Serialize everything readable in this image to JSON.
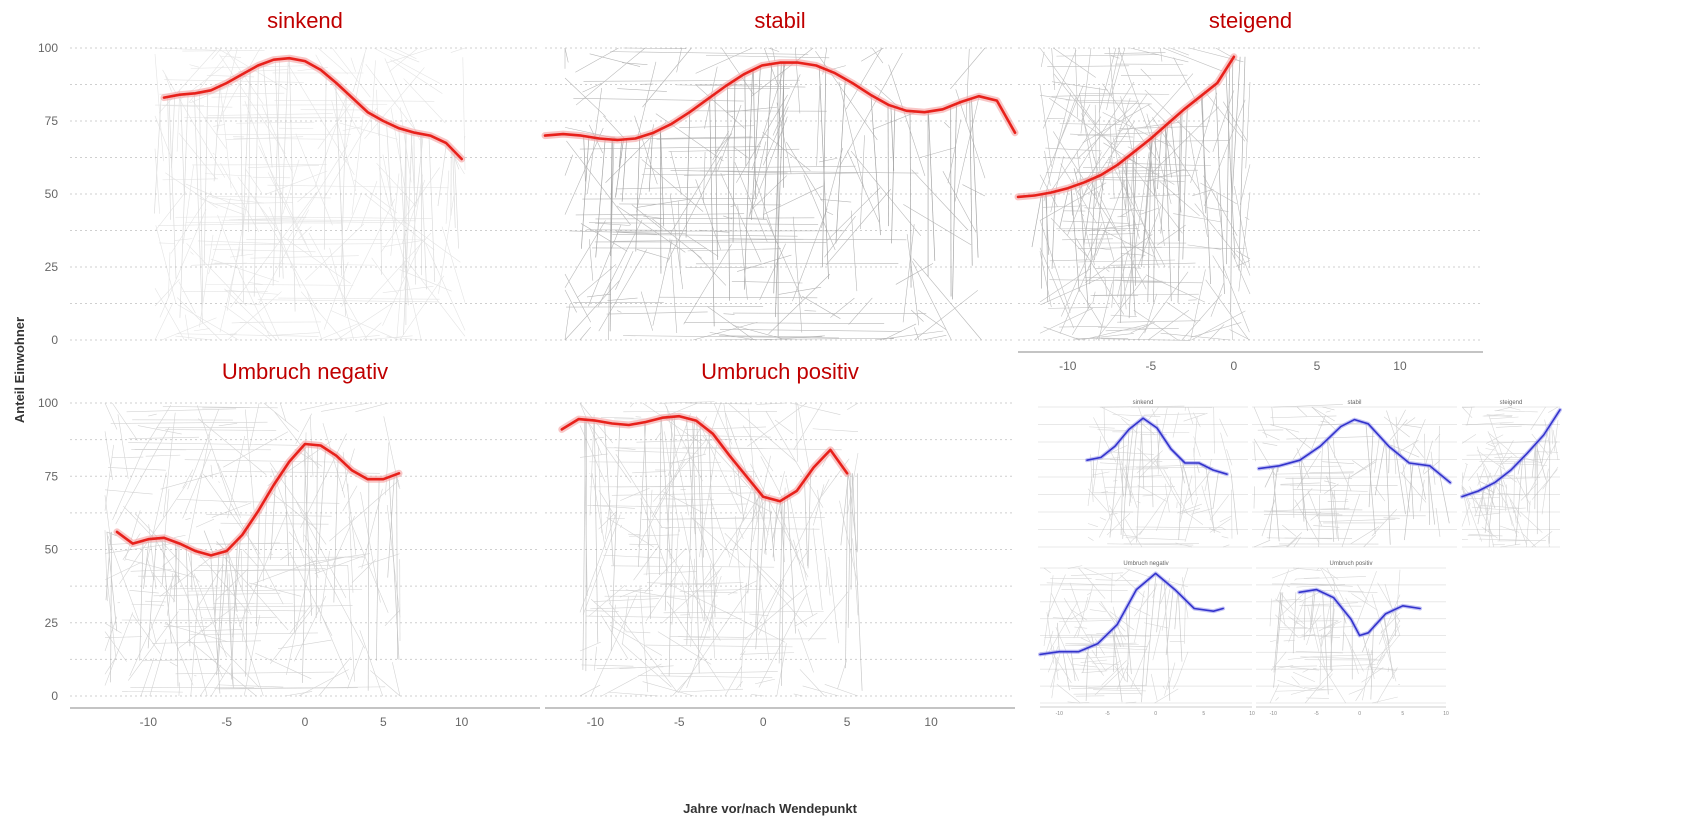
{
  "ylabel": "Anteil Einwohner",
  "xlabel": "Jahre vor/nach Wendepunkt",
  "colors": {
    "trend": "#e8211b",
    "trend_band": "#f4a0a0",
    "inset_trend": "#3333cc",
    "background_lines": "#b0b0b0"
  },
  "chart_data": [
    {
      "type": "line",
      "title": "sinkend",
      "xlim": [
        -15,
        15
      ],
      "ylim": [
        0,
        100
      ],
      "yticks": [
        0,
        25,
        50,
        75,
        100
      ],
      "series": [
        {
          "x": [
            -9,
            -8,
            -7,
            -6,
            -5,
            -4,
            -3,
            -2,
            -1,
            0,
            1,
            2,
            3,
            4,
            5,
            6,
            7,
            8,
            9,
            10
          ],
          "y": [
            83,
            84,
            84.5,
            85.5,
            88,
            91,
            94,
            96,
            96.5,
            95.5,
            92.5,
            88,
            83,
            78,
            75,
            72.5,
            71,
            70,
            67.5,
            62
          ]
        }
      ]
    },
    {
      "type": "line",
      "title": "stabil",
      "xlim": [
        -13,
        13
      ],
      "ylim": [
        0,
        100
      ],
      "series": [
        {
          "x": [
            -13,
            -12,
            -11,
            -10,
            -9,
            -8,
            -7,
            -6,
            -5,
            -4,
            -3,
            -2,
            -1,
            0,
            1,
            2,
            3,
            4,
            5,
            6,
            7,
            8,
            9,
            10,
            11,
            12,
            13
          ],
          "y": [
            70,
            70.5,
            70,
            69,
            68.5,
            69,
            71,
            74,
            78,
            82.5,
            87,
            91,
            94,
            95,
            95,
            94,
            91.5,
            88,
            84,
            80.5,
            78.5,
            78,
            79,
            81.5,
            83.5,
            82,
            71
          ]
        }
      ]
    },
    {
      "type": "line",
      "title": "steigend",
      "xlim": [
        -13,
        15
      ],
      "ylim": [
        0,
        100
      ],
      "xticks": [
        -10,
        -5,
        0,
        5,
        10
      ],
      "series": [
        {
          "x": [
            -13,
            -12,
            -11,
            -10,
            -9,
            -8,
            -7,
            -6,
            -5,
            -4,
            -3,
            -2,
            -1,
            0
          ],
          "y": [
            49,
            49.5,
            50.5,
            52,
            54,
            56.5,
            60,
            64.5,
            69,
            74,
            79,
            83.5,
            88,
            97
          ]
        }
      ]
    },
    {
      "type": "line",
      "title": "Umbruch negativ",
      "xlim": [
        -15,
        15
      ],
      "ylim": [
        0,
        100
      ],
      "yticks": [
        0,
        25,
        50,
        75,
        100
      ],
      "xticks": [
        -10,
        -5,
        0,
        5,
        10
      ],
      "series": [
        {
          "x": [
            -12,
            -11,
            -10,
            -9,
            -8,
            -7,
            -6,
            -5,
            -4,
            -3,
            -2,
            -1,
            0,
            1,
            2,
            3,
            4,
            5,
            6
          ],
          "y": [
            56,
            52,
            53.5,
            54,
            52,
            49.5,
            48,
            49.5,
            55,
            63,
            72,
            80,
            86,
            85.5,
            82,
            77,
            74,
            74,
            76
          ]
        }
      ]
    },
    {
      "type": "line",
      "title": "Umbruch positiv",
      "xlim": [
        -13,
        15
      ],
      "ylim": [
        0,
        100
      ],
      "xticks": [
        -10,
        -5,
        0,
        5,
        10
      ],
      "series": [
        {
          "x": [
            -12,
            -11,
            -10,
            -9,
            -8,
            -7,
            -6,
            -5,
            -4,
            -3,
            -2,
            -1,
            0,
            1,
            2,
            3,
            4,
            5
          ],
          "y": [
            91,
            94.5,
            94,
            93,
            92.5,
            93.5,
            95,
            95.5,
            94,
            89.5,
            82,
            75,
            68,
            66.5,
            70,
            78,
            84,
            76
          ]
        }
      ]
    },
    {
      "type": "line",
      "inset": true,
      "title": "sinkend",
      "xlim": [
        -15,
        15
      ],
      "ylim": [
        0,
        100
      ],
      "series": [
        {
          "x": [
            -8,
            -6,
            -4,
            -2,
            0,
            2,
            4,
            6,
            8,
            10,
            12
          ],
          "y": [
            62,
            64,
            72,
            84,
            92,
            85,
            70,
            60,
            60,
            55,
            52
          ]
        }
      ]
    },
    {
      "type": "line",
      "inset": true,
      "title": "stabil",
      "xlim": [
        -15,
        15
      ],
      "ylim": [
        0,
        100
      ],
      "series": [
        {
          "x": [
            -14,
            -11,
            -8,
            -5,
            -2,
            0,
            2,
            5,
            8,
            11,
            14
          ],
          "y": [
            56,
            58,
            62,
            72,
            86,
            91,
            88,
            72,
            60,
            58,
            46
          ]
        }
      ]
    },
    {
      "type": "line",
      "inset": true,
      "title": "steigend",
      "xlim": [
        -12,
        0
      ],
      "ylim": [
        0,
        100
      ],
      "xticks": [
        -10,
        -5,
        0
      ],
      "series": [
        {
          "x": [
            -12,
            -10,
            -8,
            -6,
            -4,
            -2,
            0
          ],
          "y": [
            36,
            40,
            46,
            55,
            67,
            80,
            98
          ]
        }
      ]
    },
    {
      "type": "line",
      "inset": true,
      "title": "Umbruch negativ",
      "xlim": [
        -12,
        10
      ],
      "ylim": [
        0,
        100
      ],
      "xticks": [
        -10,
        -5,
        0,
        5,
        10
      ],
      "series": [
        {
          "x": [
            -12,
            -10,
            -8,
            -6,
            -4,
            -2,
            0,
            2,
            4,
            6,
            7
          ],
          "y": [
            36,
            38,
            38,
            44,
            58,
            84,
            96,
            84,
            70,
            68,
            70
          ]
        }
      ]
    },
    {
      "type": "line",
      "inset": true,
      "title": "Umbruch positiv",
      "xlim": [
        -12,
        10
      ],
      "ylim": [
        0,
        100
      ],
      "xticks": [
        -10,
        -5,
        0,
        5,
        10
      ],
      "series": [
        {
          "x": [
            -7,
            -5,
            -3,
            -1,
            0,
            1,
            3,
            5,
            7
          ],
          "y": [
            82,
            84,
            78,
            62,
            50,
            52,
            66,
            72,
            70
          ]
        }
      ]
    }
  ]
}
